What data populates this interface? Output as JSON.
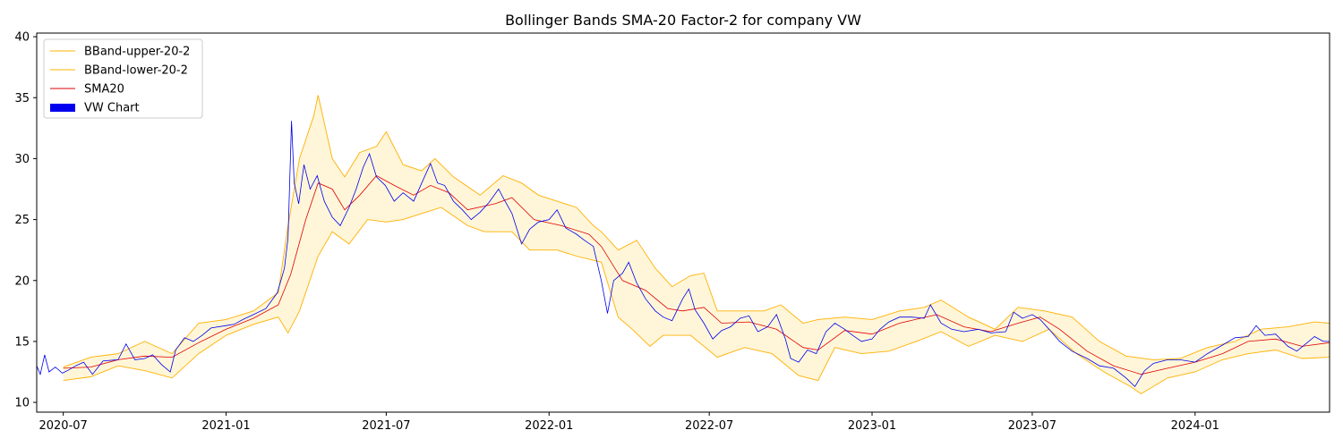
{
  "chart_data": {
    "type": "line",
    "title": "Bollinger Bands SMA-20 Factor-2 for company VW",
    "xlabel": "",
    "ylabel": "",
    "xlim": [
      "2020-06-01",
      "2024-06-01"
    ],
    "ylim": [
      9.2,
      40.3
    ],
    "x_ticks": [
      "2020-07",
      "2021-01",
      "2021-07",
      "2022-01",
      "2022-07",
      "2023-01",
      "2023-07",
      "2024-01"
    ],
    "y_ticks": [
      10,
      15,
      20,
      25,
      30,
      35,
      40
    ],
    "grid": false,
    "legend_position": "upper-left",
    "colors": {
      "upper": "#FFB000",
      "lower": "#FFB000",
      "sma": "#E00000",
      "price": "#0000EE",
      "band_fill": "#FFF6D9"
    },
    "series": [
      {
        "name": "BBand-upper-20-2",
        "key": "upper"
      },
      {
        "name": "BBand-lower-20-2",
        "key": "lower"
      },
      {
        "name": "SMA20",
        "key": "sma"
      },
      {
        "name": "VW Chart",
        "key": "price"
      }
    ],
    "price": [
      [
        "2020-06-01",
        13.0
      ],
      [
        "2020-06-05",
        12.3
      ],
      [
        "2020-06-10",
        13.9
      ],
      [
        "2020-06-15",
        12.5
      ],
      [
        "2020-06-22",
        12.9
      ],
      [
        "2020-06-30",
        12.4
      ],
      [
        "2020-07-08",
        12.7
      ],
      [
        "2020-07-15",
        13.0
      ],
      [
        "2020-07-24",
        13.3
      ],
      [
        "2020-08-03",
        12.3
      ],
      [
        "2020-08-15",
        13.4
      ],
      [
        "2020-09-01",
        13.5
      ],
      [
        "2020-09-10",
        14.8
      ],
      [
        "2020-09-20",
        13.5
      ],
      [
        "2020-10-01",
        13.6
      ],
      [
        "2020-10-10",
        13.9
      ],
      [
        "2020-10-20",
        13.1
      ],
      [
        "2020-10-30",
        12.5
      ],
      [
        "2020-11-05",
        14.3
      ],
      [
        "2020-11-15",
        15.3
      ],
      [
        "2020-11-25",
        15.0
      ],
      [
        "2020-12-05",
        15.5
      ],
      [
        "2020-12-15",
        16.1
      ],
      [
        "2021-01-01",
        16.3
      ],
      [
        "2021-01-10",
        16.4
      ],
      [
        "2021-01-20",
        16.8
      ],
      [
        "2021-02-01",
        17.2
      ],
      [
        "2021-02-15",
        17.7
      ],
      [
        "2021-02-28",
        19.0
      ],
      [
        "2021-03-08",
        21.0
      ],
      [
        "2021-03-12",
        23.5
      ],
      [
        "2021-03-16",
        33.1
      ],
      [
        "2021-03-19",
        28.0
      ],
      [
        "2021-03-24",
        26.3
      ],
      [
        "2021-03-30",
        29.5
      ],
      [
        "2021-04-06",
        27.5
      ],
      [
        "2021-04-14",
        28.6
      ],
      [
        "2021-04-22",
        26.5
      ],
      [
        "2021-05-01",
        25.2
      ],
      [
        "2021-05-10",
        24.5
      ],
      [
        "2021-05-20",
        26.0
      ],
      [
        "2021-05-28",
        27.5
      ],
      [
        "2021-06-05",
        29.3
      ],
      [
        "2021-06-12",
        30.4
      ],
      [
        "2021-06-20",
        28.5
      ],
      [
        "2021-06-30",
        27.8
      ],
      [
        "2021-07-10",
        26.5
      ],
      [
        "2021-07-20",
        27.2
      ],
      [
        "2021-08-01",
        26.5
      ],
      [
        "2021-08-12",
        28.3
      ],
      [
        "2021-08-20",
        29.6
      ],
      [
        "2021-08-28",
        28.0
      ],
      [
        "2021-09-05",
        27.8
      ],
      [
        "2021-09-15",
        26.5
      ],
      [
        "2021-09-25",
        25.8
      ],
      [
        "2021-10-05",
        25.0
      ],
      [
        "2021-10-15",
        25.6
      ],
      [
        "2021-10-25",
        26.4
      ],
      [
        "2021-11-05",
        27.5
      ],
      [
        "2021-11-10",
        26.8
      ],
      [
        "2021-11-20",
        25.5
      ],
      [
        "2021-12-01",
        23.0
      ],
      [
        "2021-12-10",
        24.2
      ],
      [
        "2021-12-20",
        24.8
      ],
      [
        "2022-01-01",
        25.0
      ],
      [
        "2022-01-10",
        25.8
      ],
      [
        "2022-01-20",
        24.3
      ],
      [
        "2022-02-01",
        23.8
      ],
      [
        "2022-02-10",
        23.3
      ],
      [
        "2022-02-20",
        22.8
      ],
      [
        "2022-03-01",
        20.0
      ],
      [
        "2022-03-08",
        17.3
      ],
      [
        "2022-03-15",
        20.0
      ],
      [
        "2022-03-25",
        20.6
      ],
      [
        "2022-04-01",
        21.5
      ],
      [
        "2022-04-10",
        19.8
      ],
      [
        "2022-04-20",
        18.5
      ],
      [
        "2022-05-01",
        17.5
      ],
      [
        "2022-05-10",
        17.0
      ],
      [
        "2022-05-20",
        16.7
      ],
      [
        "2022-06-01",
        18.5
      ],
      [
        "2022-06-08",
        19.3
      ],
      [
        "2022-06-15",
        17.6
      ],
      [
        "2022-06-25",
        16.5
      ],
      [
        "2022-07-05",
        15.2
      ],
      [
        "2022-07-15",
        15.9
      ],
      [
        "2022-07-25",
        16.2
      ],
      [
        "2022-08-05",
        16.9
      ],
      [
        "2022-08-15",
        17.1
      ],
      [
        "2022-08-25",
        15.8
      ],
      [
        "2022-09-05",
        16.2
      ],
      [
        "2022-09-15",
        17.2
      ],
      [
        "2022-09-25",
        15.2
      ],
      [
        "2022-10-01",
        13.6
      ],
      [
        "2022-10-10",
        13.3
      ],
      [
        "2022-10-20",
        14.3
      ],
      [
        "2022-10-30",
        14.0
      ],
      [
        "2022-11-10",
        15.8
      ],
      [
        "2022-11-20",
        16.5
      ],
      [
        "2022-12-01",
        16.0
      ],
      [
        "2022-12-10",
        15.5
      ],
      [
        "2022-12-20",
        15.0
      ],
      [
        "2023-01-01",
        15.2
      ],
      [
        "2023-01-10",
        16.0
      ],
      [
        "2023-01-20",
        16.6
      ],
      [
        "2023-02-01",
        17.0
      ],
      [
        "2023-02-15",
        17.0
      ],
      [
        "2023-03-01",
        16.9
      ],
      [
        "2023-03-08",
        18.0
      ],
      [
        "2023-03-20",
        16.5
      ],
      [
        "2023-04-01",
        16.0
      ],
      [
        "2023-04-15",
        15.8
      ],
      [
        "2023-05-01",
        16.0
      ],
      [
        "2023-05-15",
        15.7
      ],
      [
        "2023-06-01",
        15.8
      ],
      [
        "2023-06-10",
        17.4
      ],
      [
        "2023-06-20",
        16.9
      ],
      [
        "2023-07-01",
        17.2
      ],
      [
        "2023-07-10",
        16.8
      ],
      [
        "2023-07-20",
        16.0
      ],
      [
        "2023-08-01",
        15.0
      ],
      [
        "2023-08-15",
        14.2
      ],
      [
        "2023-09-01",
        13.6
      ],
      [
        "2023-09-15",
        13.0
      ],
      [
        "2023-10-01",
        12.8
      ],
      [
        "2023-10-15",
        12.0
      ],
      [
        "2023-10-25",
        11.3
      ],
      [
        "2023-11-05",
        12.6
      ],
      [
        "2023-11-15",
        13.2
      ],
      [
        "2023-12-01",
        13.5
      ],
      [
        "2023-12-15",
        13.5
      ],
      [
        "2024-01-01",
        13.3
      ],
      [
        "2024-01-15",
        14.0
      ],
      [
        "2024-02-01",
        14.7
      ],
      [
        "2024-02-15",
        15.3
      ],
      [
        "2024-03-01",
        15.4
      ],
      [
        "2024-03-10",
        16.3
      ],
      [
        "2024-03-20",
        15.5
      ],
      [
        "2024-04-01",
        15.6
      ],
      [
        "2024-04-15",
        14.6
      ],
      [
        "2024-04-25",
        14.2
      ],
      [
        "2024-05-05",
        14.8
      ],
      [
        "2024-05-15",
        15.4
      ],
      [
        "2024-05-25",
        15.0
      ],
      [
        "2024-06-01",
        15.0
      ]
    ],
    "sma": [
      [
        "2020-07-01",
        12.8
      ],
      [
        "2020-08-01",
        12.9
      ],
      [
        "2020-09-01",
        13.5
      ],
      [
        "2020-10-01",
        13.8
      ],
      [
        "2020-11-01",
        13.7
      ],
      [
        "2020-12-01",
        14.9
      ],
      [
        "2021-01-01",
        16.0
      ],
      [
        "2021-02-01",
        16.9
      ],
      [
        "2021-03-01",
        18.0
      ],
      [
        "2021-03-15",
        20.5
      ],
      [
        "2021-04-01",
        25.0
      ],
      [
        "2021-04-15",
        28.0
      ],
      [
        "2021-05-01",
        27.5
      ],
      [
        "2021-05-15",
        25.8
      ],
      [
        "2021-06-01",
        27.0
      ],
      [
        "2021-06-20",
        28.6
      ],
      [
        "2021-07-10",
        27.8
      ],
      [
        "2021-08-01",
        27.0
      ],
      [
        "2021-08-20",
        27.8
      ],
      [
        "2021-09-10",
        27.2
      ],
      [
        "2021-10-01",
        25.8
      ],
      [
        "2021-11-01",
        26.3
      ],
      [
        "2021-11-20",
        26.8
      ],
      [
        "2021-12-15",
        25.0
      ],
      [
        "2022-01-15",
        24.5
      ],
      [
        "2022-02-15",
        23.8
      ],
      [
        "2022-03-01",
        22.8
      ],
      [
        "2022-03-25",
        20.0
      ],
      [
        "2022-04-20",
        19.2
      ],
      [
        "2022-05-15",
        17.7
      ],
      [
        "2022-06-01",
        17.5
      ],
      [
        "2022-06-25",
        17.8
      ],
      [
        "2022-07-15",
        16.5
      ],
      [
        "2022-08-15",
        16.6
      ],
      [
        "2022-09-15",
        16.0
      ],
      [
        "2022-10-15",
        14.5
      ],
      [
        "2022-11-01",
        14.3
      ],
      [
        "2022-12-01",
        15.9
      ],
      [
        "2023-01-01",
        15.6
      ],
      [
        "2023-02-01",
        16.5
      ],
      [
        "2023-03-15",
        17.2
      ],
      [
        "2023-04-15",
        16.2
      ],
      [
        "2023-05-15",
        15.8
      ],
      [
        "2023-06-15",
        16.5
      ],
      [
        "2023-07-10",
        17.0
      ],
      [
        "2023-08-01",
        16.0
      ],
      [
        "2023-09-01",
        14.2
      ],
      [
        "2023-10-01",
        13.0
      ],
      [
        "2023-11-01",
        12.3
      ],
      [
        "2023-12-01",
        12.8
      ],
      [
        "2024-01-01",
        13.3
      ],
      [
        "2024-02-01",
        14.0
      ],
      [
        "2024-03-01",
        15.0
      ],
      [
        "2024-04-01",
        15.2
      ],
      [
        "2024-05-01",
        14.6
      ],
      [
        "2024-06-01",
        14.9
      ]
    ],
    "upper": [
      [
        "2020-07-01",
        12.9
      ],
      [
        "2020-08-01",
        13.7
      ],
      [
        "2020-09-01",
        14.0
      ],
      [
        "2020-10-01",
        15.0
      ],
      [
        "2020-11-01",
        14.0
      ],
      [
        "2020-12-01",
        16.5
      ],
      [
        "2021-01-01",
        16.8
      ],
      [
        "2021-02-01",
        17.5
      ],
      [
        "2021-03-01",
        19.0
      ],
      [
        "2021-03-12",
        24.5
      ],
      [
        "2021-03-25",
        30.0
      ],
      [
        "2021-04-10",
        33.5
      ],
      [
        "2021-04-15",
        35.2
      ],
      [
        "2021-05-01",
        30.0
      ],
      [
        "2021-05-15",
        28.5
      ],
      [
        "2021-06-01",
        30.5
      ],
      [
        "2021-06-20",
        31.0
      ],
      [
        "2021-07-01",
        32.2
      ],
      [
        "2021-07-20",
        29.5
      ],
      [
        "2021-08-10",
        29.0
      ],
      [
        "2021-08-25",
        30.0
      ],
      [
        "2021-09-15",
        28.5
      ],
      [
        "2021-10-15",
        27.0
      ],
      [
        "2021-11-10",
        28.6
      ],
      [
        "2021-12-01",
        28.0
      ],
      [
        "2021-12-20",
        27.0
      ],
      [
        "2022-01-10",
        26.5
      ],
      [
        "2022-02-01",
        26.0
      ],
      [
        "2022-02-20",
        24.5
      ],
      [
        "2022-03-01",
        24.0
      ],
      [
        "2022-03-20",
        22.5
      ],
      [
        "2022-04-10",
        23.3
      ],
      [
        "2022-05-01",
        21.0
      ],
      [
        "2022-05-20",
        19.5
      ],
      [
        "2022-06-10",
        20.4
      ],
      [
        "2022-06-25",
        20.6
      ],
      [
        "2022-07-10",
        17.5
      ],
      [
        "2022-08-01",
        17.5
      ],
      [
        "2022-09-01",
        17.5
      ],
      [
        "2022-09-20",
        18.0
      ],
      [
        "2022-10-15",
        16.5
      ],
      [
        "2022-11-01",
        16.8
      ],
      [
        "2022-12-01",
        17.0
      ],
      [
        "2023-01-01",
        16.8
      ],
      [
        "2023-02-01",
        17.5
      ],
      [
        "2023-03-01",
        17.8
      ],
      [
        "2023-03-20",
        18.4
      ],
      [
        "2023-04-20",
        17.0
      ],
      [
        "2023-05-20",
        16.0
      ],
      [
        "2023-06-15",
        17.8
      ],
      [
        "2023-07-15",
        17.5
      ],
      [
        "2023-08-15",
        17.0
      ],
      [
        "2023-09-15",
        15.0
      ],
      [
        "2023-10-15",
        13.8
      ],
      [
        "2023-11-15",
        13.5
      ],
      [
        "2023-12-15",
        13.6
      ],
      [
        "2024-01-15",
        14.5
      ],
      [
        "2024-02-15",
        15.0
      ],
      [
        "2024-03-15",
        16.0
      ],
      [
        "2024-04-15",
        16.2
      ],
      [
        "2024-05-15",
        16.6
      ],
      [
        "2024-06-01",
        16.5
      ]
    ],
    "lower": [
      [
        "2020-07-01",
        11.8
      ],
      [
        "2020-08-01",
        12.1
      ],
      [
        "2020-09-01",
        13.0
      ],
      [
        "2020-10-01",
        12.6
      ],
      [
        "2020-11-01",
        12.0
      ],
      [
        "2020-12-01",
        14.0
      ],
      [
        "2021-01-01",
        15.5
      ],
      [
        "2021-02-01",
        16.4
      ],
      [
        "2021-03-01",
        17.0
      ],
      [
        "2021-03-12",
        15.7
      ],
      [
        "2021-03-25",
        17.5
      ],
      [
        "2021-04-15",
        22.0
      ],
      [
        "2021-05-01",
        24.0
      ],
      [
        "2021-05-20",
        23.0
      ],
      [
        "2021-06-10",
        25.0
      ],
      [
        "2021-07-01",
        24.8
      ],
      [
        "2021-07-20",
        25.0
      ],
      [
        "2021-08-10",
        25.5
      ],
      [
        "2021-09-01",
        26.0
      ],
      [
        "2021-10-01",
        24.5
      ],
      [
        "2021-10-20",
        24.0
      ],
      [
        "2021-11-20",
        24.0
      ],
      [
        "2021-12-10",
        22.5
      ],
      [
        "2022-01-10",
        22.5
      ],
      [
        "2022-02-01",
        22.0
      ],
      [
        "2022-03-01",
        21.5
      ],
      [
        "2022-03-20",
        17.0
      ],
      [
        "2022-04-05",
        16.0
      ],
      [
        "2022-04-25",
        14.6
      ],
      [
        "2022-05-10",
        15.5
      ],
      [
        "2022-06-10",
        15.5
      ],
      [
        "2022-07-10",
        13.7
      ],
      [
        "2022-08-10",
        14.5
      ],
      [
        "2022-09-10",
        14.0
      ],
      [
        "2022-10-10",
        12.2
      ],
      [
        "2022-11-01",
        11.8
      ],
      [
        "2022-11-20",
        14.5
      ],
      [
        "2022-12-20",
        14.0
      ],
      [
        "2023-01-20",
        14.2
      ],
      [
        "2023-02-20",
        15.0
      ],
      [
        "2023-03-20",
        15.8
      ],
      [
        "2023-04-20",
        14.6
      ],
      [
        "2023-05-20",
        15.5
      ],
      [
        "2023-06-20",
        15.0
      ],
      [
        "2023-07-20",
        16.0
      ],
      [
        "2023-08-20",
        14.0
      ],
      [
        "2023-09-20",
        12.5
      ],
      [
        "2023-10-20",
        11.3
      ],
      [
        "2023-11-01",
        10.7
      ],
      [
        "2023-12-01",
        12.0
      ],
      [
        "2024-01-01",
        12.5
      ],
      [
        "2024-02-01",
        13.5
      ],
      [
        "2024-03-01",
        14.0
      ],
      [
        "2024-04-01",
        14.3
      ],
      [
        "2024-05-01",
        13.6
      ],
      [
        "2024-06-01",
        13.7
      ]
    ]
  }
}
